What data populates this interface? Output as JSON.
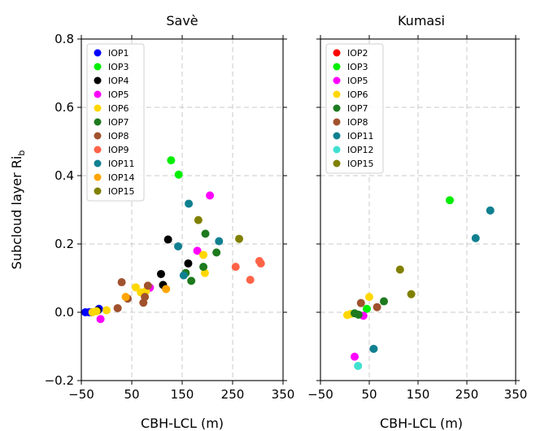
{
  "figure": {
    "ylabel": "Subcloud layer Ri",
    "ylabel_sub": "b"
  },
  "chart_data": [
    {
      "type": "scatter",
      "title": "Savè",
      "xlabel": "CBH-LCL (m)",
      "ylabel": "Subcloud layer Ri_b",
      "xlim": [
        -50,
        350
      ],
      "ylim": [
        -0.2,
        0.8
      ],
      "xticks": [
        -50,
        50,
        150,
        250,
        350
      ],
      "yticks": [
        -0.2,
        0.0,
        0.2,
        0.4,
        0.6,
        0.8
      ],
      "ytick_labels": [
        "−0.2",
        "0.0",
        "0.2",
        "0.4",
        "0.6",
        "0.8"
      ],
      "xtick_labels": [
        "−50",
        "50",
        "150",
        "250",
        "350"
      ],
      "grid": true,
      "legend_position": "top-left",
      "series": [
        {
          "name": "IOP1",
          "color": "#0000ff",
          "x": [
            -42,
            -35,
            -30,
            -18,
            -15
          ],
          "y": [
            0.0,
            0.0,
            0.0,
            0.005,
            0.01
          ]
        },
        {
          "name": "IOP3",
          "color": "#00ee00",
          "x": [
            128,
            143
          ],
          "y": [
            0.445,
            0.403
          ]
        },
        {
          "name": "IOP4",
          "color": "#000000",
          "x": [
            -18,
            108,
            112,
            122,
            162
          ],
          "y": [
            0.005,
            0.112,
            0.08,
            0.213,
            0.143
          ]
        },
        {
          "name": "IOP5",
          "color": "#ff00ff",
          "x": [
            -12,
            86,
            180,
            205
          ],
          "y": [
            -0.02,
            0.072,
            0.18,
            0.342
          ]
        },
        {
          "name": "IOP6",
          "color": "#ffd700",
          "x": [
            -28,
            -20,
            0,
            58,
            68,
            78,
            192,
            195
          ],
          "y": [
            0.0,
            0.003,
            0.006,
            0.073,
            0.058,
            0.062,
            0.168,
            0.115
          ]
        },
        {
          "name": "IOP7",
          "color": "#1e7a1e",
          "x": [
            157,
            168,
            192,
            196,
            218
          ],
          "y": [
            0.115,
            0.092,
            0.133,
            0.23,
            0.175
          ]
        },
        {
          "name": "IOP8",
          "color": "#a0522d",
          "x": [
            22,
            30,
            42,
            73,
            76,
            82
          ],
          "y": [
            0.012,
            0.088,
            0.04,
            0.028,
            0.045,
            0.078
          ]
        },
        {
          "name": "IOP9",
          "color": "#ff6347",
          "x": [
            256,
            285,
            303,
            306
          ],
          "y": [
            0.133,
            0.095,
            0.15,
            0.143
          ]
        },
        {
          "name": "IOP11",
          "color": "#108090",
          "x": [
            142,
            153,
            163,
            223
          ],
          "y": [
            0.193,
            0.108,
            0.318,
            0.208
          ]
        },
        {
          "name": "IOP14",
          "color": "#ffa500",
          "x": [
            38,
            118
          ],
          "y": [
            0.045,
            0.068
          ]
        },
        {
          "name": "IOP15",
          "color": "#808000",
          "x": [
            182,
            263
          ],
          "y": [
            0.27,
            0.215
          ]
        }
      ]
    },
    {
      "type": "scatter",
      "title": "Kumasi",
      "xlabel": "CBH-LCL (m)",
      "xlim": [
        -50,
        350
      ],
      "ylim": [
        -0.2,
        0.8
      ],
      "xticks": [
        -50,
        50,
        150,
        250,
        350
      ],
      "xtick_labels": [
        "−50",
        "50",
        "150",
        "250",
        "350"
      ],
      "grid": true,
      "legend_position": "top-left",
      "series": [
        {
          "name": "IOP2",
          "color": "#ff0000",
          "x": [],
          "y": []
        },
        {
          "name": "IOP3",
          "color": "#00ee00",
          "x": [
            45,
            215
          ],
          "y": [
            0.01,
            0.328
          ]
        },
        {
          "name": "IOP5",
          "color": "#ff00ff",
          "x": [
            20,
            38
          ],
          "y": [
            -0.13,
            -0.01
          ]
        },
        {
          "name": "IOP6",
          "color": "#ffd700",
          "x": [
            5,
            12,
            50
          ],
          "y": [
            -0.008,
            -0.005,
            0.045
          ]
        },
        {
          "name": "IOP7",
          "color": "#1e7a1e",
          "x": [
            20,
            28,
            80
          ],
          "y": [
            -0.003,
            -0.007,
            0.032
          ]
        },
        {
          "name": "IOP8",
          "color": "#a0522d",
          "x": [
            33,
            66
          ],
          "y": [
            0.027,
            0.015
          ]
        },
        {
          "name": "IOP11",
          "color": "#108090",
          "x": [
            59,
            268,
            298
          ],
          "y": [
            -0.107,
            0.217,
            0.298
          ]
        },
        {
          "name": "IOP12",
          "color": "#40e0d0",
          "x": [
            27
          ],
          "y": [
            -0.157
          ]
        },
        {
          "name": "IOP15",
          "color": "#808000",
          "x": [
            113,
            136
          ],
          "y": [
            0.125,
            0.053
          ]
        }
      ]
    }
  ]
}
